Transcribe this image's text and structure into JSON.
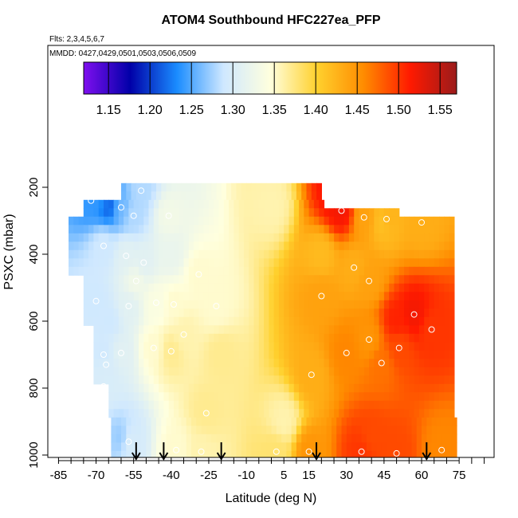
{
  "chart_data": {
    "type": "heatmap",
    "title": "ATOM4 Southbound HFC227ea_PFP",
    "flights_note": "Flts: 2,3,4,5,6,7",
    "dates_note": "MMDD: 0427,0429,0501,0503,0506,0509",
    "xlabel": "Latitude (deg N)",
    "ylabel": "PSXC (mbar)",
    "x_ticks": [
      "-85",
      "-70",
      "-55",
      "-40",
      "-25",
      "-10",
      "5",
      "15",
      "30",
      "45",
      "60",
      "75"
    ],
    "y_ticks": [
      "200",
      "400",
      "600",
      "800",
      "1000"
    ],
    "xlim": [
      -88,
      88
    ],
    "ylim_inverted": [
      1000,
      80
    ],
    "colorbar": {
      "min": 1.12,
      "max": 1.57,
      "ticks": [
        "1.15",
        "1.20",
        "1.25",
        "1.30",
        "1.35",
        "1.40",
        "1.45",
        "1.50",
        "1.55"
      ],
      "colors": [
        "#7f0fef",
        "#0000a8",
        "#1a8cff",
        "#cfe8ff",
        "#ffffde",
        "#ffd12e",
        "#ff8c00",
        "#ff1a00",
        "#9b1b1b"
      ]
    },
    "arrows_lat": [
      -54,
      -43,
      -20,
      18,
      62
    ],
    "field_samples": [
      {
        "lat": -65,
        "p": 250,
        "value": 1.21
      },
      {
        "lat": -65,
        "p": 600,
        "value": 1.29
      },
      {
        "lat": -60,
        "p": 950,
        "value": 1.27
      },
      {
        "lat": -40,
        "p": 400,
        "value": 1.32
      },
      {
        "lat": -20,
        "p": 700,
        "value": 1.37
      },
      {
        "lat": 0,
        "p": 250,
        "value": 1.36
      },
      {
        "lat": 5,
        "p": 900,
        "value": 1.36
      },
      {
        "lat": 20,
        "p": 400,
        "value": 1.42
      },
      {
        "lat": 25,
        "p": 220,
        "value": 1.52
      },
      {
        "lat": 45,
        "p": 300,
        "value": 1.41
      },
      {
        "lat": 50,
        "p": 600,
        "value": 1.51
      },
      {
        "lat": 40,
        "p": 950,
        "value": 1.49
      }
    ],
    "data_points": [
      {
        "lat": -72,
        "p": 240,
        "value": 1.24
      },
      {
        "lat": -66,
        "p": 225,
        "value": 1.25
      },
      {
        "lat": -60,
        "p": 260,
        "value": 1.26
      },
      {
        "lat": -55,
        "p": 285,
        "value": 1.28
      },
      {
        "lat": -41,
        "p": 285,
        "value": 1.33
      },
      {
        "lat": -52,
        "p": 210,
        "value": 1.28
      },
      {
        "lat": -67,
        "p": 375,
        "value": 1.29
      },
      {
        "lat": -58,
        "p": 405,
        "value": 1.31
      },
      {
        "lat": -51,
        "p": 425,
        "value": 1.31
      },
      {
        "lat": -54,
        "p": 480,
        "value": 1.33
      },
      {
        "lat": -70,
        "p": 540,
        "value": 1.29
      },
      {
        "lat": -57,
        "p": 555,
        "value": 1.31
      },
      {
        "lat": -46,
        "p": 545,
        "value": 1.34
      },
      {
        "lat": -39,
        "p": 550,
        "value": 1.35
      },
      {
        "lat": -29,
        "p": 460,
        "value": 1.35
      },
      {
        "lat": -22,
        "p": 555,
        "value": 1.35
      },
      {
        "lat": -67,
        "p": 700,
        "value": 1.29
      },
      {
        "lat": -60,
        "p": 695,
        "value": 1.31
      },
      {
        "lat": -66,
        "p": 730,
        "value": 1.3
      },
      {
        "lat": -47,
        "p": 680,
        "value": 1.35
      },
      {
        "lat": -35,
        "p": 640,
        "value": 1.36
      },
      {
        "lat": -40,
        "p": 690,
        "value": 1.37
      },
      {
        "lat": -67,
        "p": 795,
        "value": 1.3
      },
      {
        "lat": -26,
        "p": 875,
        "value": 1.37
      },
      {
        "lat": -68,
        "p": 955,
        "value": 1.28
      },
      {
        "lat": -57,
        "p": 960,
        "value": 1.3
      },
      {
        "lat": -38,
        "p": 985,
        "value": 1.35
      },
      {
        "lat": -28,
        "p": 990,
        "value": 1.36
      },
      {
        "lat": 2,
        "p": 990,
        "value": 1.38
      },
      {
        "lat": 15,
        "p": 990,
        "value": 1.45
      },
      {
        "lat": 28,
        "p": 270,
        "value": 1.52
      },
      {
        "lat": 37,
        "p": 290,
        "value": 1.44
      },
      {
        "lat": 46,
        "p": 295,
        "value": 1.43
      },
      {
        "lat": 60,
        "p": 305,
        "value": 1.43
      },
      {
        "lat": 33,
        "p": 440,
        "value": 1.43
      },
      {
        "lat": 39,
        "p": 480,
        "value": 1.44
      },
      {
        "lat": 20,
        "p": 525,
        "value": 1.44
      },
      {
        "lat": 57,
        "p": 580,
        "value": 1.52
      },
      {
        "lat": 39,
        "p": 655,
        "value": 1.45
      },
      {
        "lat": 51,
        "p": 680,
        "value": 1.49
      },
      {
        "lat": 64,
        "p": 625,
        "value": 1.5
      },
      {
        "lat": 30,
        "p": 695,
        "value": 1.46
      },
      {
        "lat": 44,
        "p": 725,
        "value": 1.47
      },
      {
        "lat": 16,
        "p": 760,
        "value": 1.43
      },
      {
        "lat": 36,
        "p": 990,
        "value": 1.5
      },
      {
        "lat": 50,
        "p": 995,
        "value": 1.49
      },
      {
        "lat": 68,
        "p": 985,
        "value": 1.46
      }
    ]
  }
}
